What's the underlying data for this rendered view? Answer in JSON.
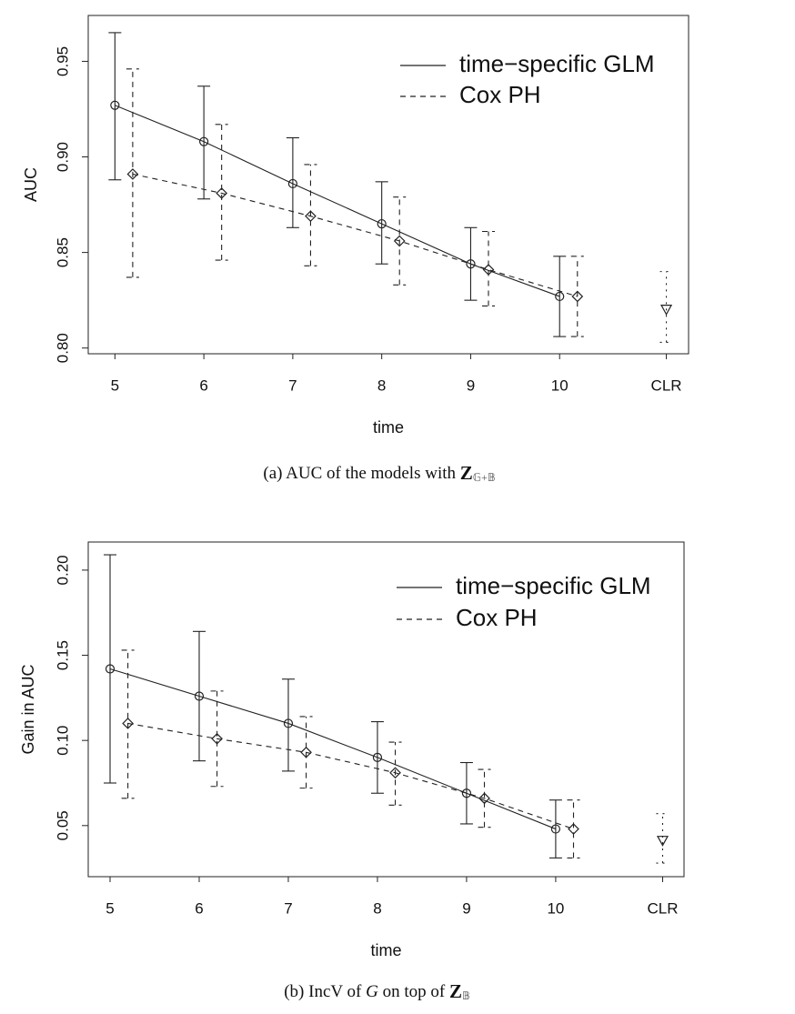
{
  "chart_data": [
    {
      "type": "line",
      "xlabel": "time",
      "ylabel": "AUC",
      "caption": [
        {
          "text": "(a)  AUC of the models with ",
          "style": "normal"
        },
        {
          "text": "Z",
          "style": "bold"
        },
        {
          "text": "𝔾+𝔹",
          "style": "subscript"
        }
      ],
      "xlim": [
        4.7,
        11.45
      ],
      "ylim": [
        0.797,
        0.974
      ],
      "xticks": [
        5,
        6,
        7,
        8,
        9,
        10,
        {
          "value": 11.2,
          "label": "CLR"
        }
      ],
      "yticks": [
        {
          "value": 0.8,
          "label": "0.80"
        },
        0.85,
        {
          "value": 0.9,
          "label": "0.90"
        },
        0.95
      ],
      "legend": "top-right",
      "series": [
        {
          "name": "time−specific GLM",
          "color": "#222",
          "linestyle": "solid",
          "marker": "circle",
          "show_line": true,
          "x": [
            5,
            6,
            7,
            8,
            9,
            10
          ],
          "values": [
            0.927,
            0.908,
            0.886,
            0.865,
            0.844,
            0.827
          ],
          "lower": [
            0.888,
            0.878,
            0.863,
            0.844,
            0.825,
            0.806
          ],
          "upper": [
            0.965,
            0.937,
            0.91,
            0.887,
            0.863,
            0.848
          ]
        },
        {
          "name": "Cox PH",
          "color": "#222",
          "linestyle": "dashed",
          "marker": "diamond",
          "show_line": true,
          "x": [
            5.2,
            6.2,
            7.2,
            8.2,
            9.2,
            10.2
          ],
          "values": [
            0.891,
            0.881,
            0.869,
            0.856,
            0.841,
            0.827
          ],
          "lower": [
            0.837,
            0.846,
            0.843,
            0.833,
            0.822,
            0.806
          ],
          "upper": [
            0.946,
            0.917,
            0.896,
            0.879,
            0.861,
            0.848
          ]
        },
        {
          "color": "#222",
          "linestyle": "dotted",
          "marker": "triangle",
          "show_line": false,
          "x": [
            11.2
          ],
          "values": [
            0.82
          ],
          "lower": [
            0.803
          ],
          "upper": [
            0.84
          ]
        }
      ]
    },
    {
      "type": "line",
      "xlabel": "time",
      "ylabel": "Gain in AUC",
      "caption": [
        {
          "text": "(b)  IncV of ",
          "style": "normal"
        },
        {
          "text": "G",
          "style": "italic"
        },
        {
          "text": " on top of ",
          "style": "normal"
        },
        {
          "text": "Z",
          "style": "bold"
        },
        {
          "text": "𝔹",
          "style": "subscript"
        }
      ],
      "xlim": [
        4.755,
        11.44
      ],
      "ylim": [
        0.02,
        0.2165
      ],
      "xticks": [
        5,
        6,
        7,
        8,
        9,
        10,
        {
          "value": 11.2,
          "label": "CLR"
        }
      ],
      "yticks": [
        0.05,
        {
          "value": 0.1,
          "label": "0.10"
        },
        0.15,
        {
          "value": 0.2,
          "label": "0.20"
        }
      ],
      "legend": "top-right",
      "series": [
        {
          "name": "time−specific GLM",
          "color": "#222",
          "linestyle": "solid",
          "marker": "circle",
          "show_line": true,
          "x": [
            5,
            6,
            7,
            8,
            9,
            10
          ],
          "values": [
            0.142,
            0.126,
            0.11,
            0.09,
            0.069,
            0.048
          ],
          "lower": [
            0.075,
            0.088,
            0.082,
            0.069,
            0.051,
            0.031
          ],
          "upper": [
            0.209,
            0.164,
            0.136,
            0.111,
            0.087,
            0.065
          ]
        },
        {
          "name": "Cox PH",
          "color": "#222",
          "linestyle": "dashed",
          "marker": "diamond",
          "show_line": true,
          "x": [
            5.2,
            6.2,
            7.2,
            8.2,
            9.2,
            10.2
          ],
          "values": [
            0.11,
            0.101,
            0.093,
            0.081,
            0.066,
            0.048
          ],
          "lower": [
            0.066,
            0.073,
            0.072,
            0.062,
            0.049,
            0.031
          ],
          "upper": [
            0.153,
            0.129,
            0.114,
            0.099,
            0.083,
            0.065
          ]
        },
        {
          "color": "#222",
          "linestyle": "dotted",
          "marker": "triangle",
          "show_line": false,
          "x": [
            11.2
          ],
          "values": [
            0.041
          ],
          "lower": [
            0.028
          ],
          "upper": [
            0.057
          ]
        }
      ]
    }
  ]
}
